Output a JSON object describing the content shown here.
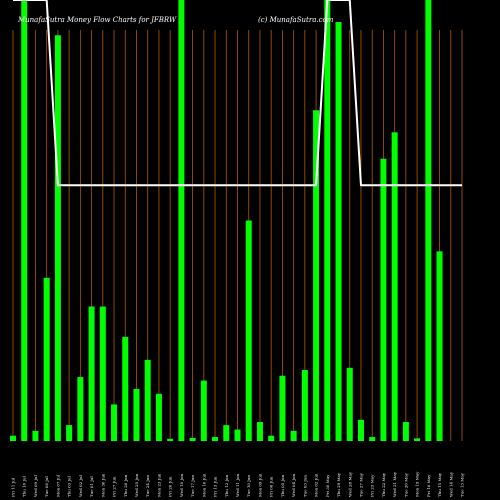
{
  "chart_data": {
    "type": "bar",
    "title": "MunafaSutra  Money Flow  Charts for JFBRW",
    "watermark": "(c) MunafaSutra.com",
    "bar_color": "#00ff00",
    "grid_color": "#b35900",
    "line_color": "#ffffff",
    "background": "#000000",
    "ylim": [
      0,
      100
    ],
    "categories": [
      "Fri 11 Jul",
      "Thu 10 Jul",
      "Wed 09 Jul",
      "Tue 08 Jul",
      "Mon 07 Jul",
      "Thu 03 Jul",
      "Wed 02 Jul",
      "Tue 01 Jul",
      "Mon 30 Jun",
      "Fri 27 Jun",
      "Thu 26 Jun",
      "Wed 25 Jun",
      "Tue 24 Jun",
      "Mon 23 Jun",
      "Fri 20 Jun",
      "Wed 18 Jun",
      "Tue 17 Jun",
      "Mon 16 Jun",
      "Fri 13 Jun",
      "Thu 12 Jun",
      "Wed 11 Jun",
      "Tue 10 Jun",
      "Mon 09 Jun",
      "Fri 06 Jun",
      "Thu 05 Jun",
      "Wed 04 Jun",
      "Tue 03 Jun",
      "Mon 02 Jun",
      "Fri 30 May",
      "Thu 29 May",
      "Wed 28 May",
      "Tue 27 May",
      "Fri 23 May",
      "Thu 22 May",
      "Wed 21 May",
      "Tue 20 May",
      "Mon 19 May",
      "Fri 16 May",
      "Thu 15 May",
      "Wed 14 May",
      "Tue 13 May"
    ],
    "values": [
      1.2,
      100,
      2.3,
      37,
      92,
      3.6,
      14.5,
      30.5,
      30.5,
      8.3,
      23.6,
      11.8,
      18.4,
      10.7,
      0.5,
      100,
      0.7,
      13.7,
      0.9,
      3.6,
      2.6,
      50,
      4.3,
      1.2,
      14.8,
      2.3,
      16.1,
      75,
      100,
      95,
      16.6,
      4.8,
      0.9,
      64,
      70,
      4.3,
      0.6,
      100,
      43,
      0,
      0
    ],
    "line_values": [
      100,
      100,
      100,
      100,
      58,
      58,
      58,
      58,
      58,
      58,
      58,
      58,
      58,
      58,
      58,
      58,
      58,
      58,
      58,
      58,
      58,
      58,
      58,
      58,
      58,
      58,
      58,
      58,
      100,
      100,
      100,
      58,
      58,
      58,
      58,
      58,
      58,
      58,
      58,
      58,
      58
    ]
  }
}
